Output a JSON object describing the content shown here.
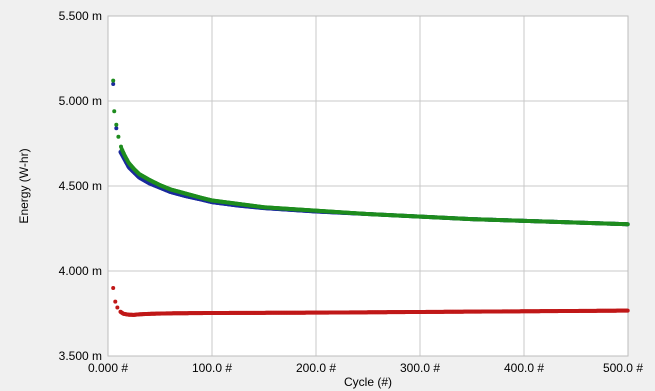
{
  "chart_data": {
    "type": "scatter",
    "title": "",
    "xlabel": "Cycle (#)",
    "ylabel": "Energy (W-hr)",
    "xlim": [
      0,
      500
    ],
    "ylim": [
      3.5,
      5.5
    ],
    "grid": true,
    "x_ticks": [
      "0.000 #",
      "100.0 #",
      "200.0 #",
      "300.0 #",
      "400.0 #",
      "500.0 #"
    ],
    "y_ticks": [
      "3.500 m",
      "4.000 m",
      "4.500 m",
      "5.000 m",
      "5.500 m"
    ],
    "series": [
      {
        "color": "#1a2a9c",
        "points": [
          [
            5,
            5.1
          ],
          [
            8,
            4.84
          ],
          [
            12,
            4.7
          ],
          [
            20,
            4.61
          ],
          [
            30,
            4.55
          ],
          [
            40,
            4.515
          ],
          [
            50,
            4.49
          ],
          [
            60,
            4.465
          ],
          [
            75,
            4.44
          ],
          [
            90,
            4.42
          ],
          [
            100,
            4.405
          ],
          [
            125,
            4.385
          ],
          [
            150,
            4.37
          ],
          [
            200,
            4.35
          ],
          [
            250,
            4.335
          ],
          [
            300,
            4.32
          ],
          [
            350,
            4.305
          ],
          [
            400,
            4.295
          ],
          [
            450,
            4.285
          ],
          [
            500,
            4.275
          ]
        ]
      },
      {
        "color": "#1e8c1e",
        "points": [
          [
            5,
            5.12
          ],
          [
            6,
            4.94
          ],
          [
            8,
            4.86
          ],
          [
            10,
            4.79
          ],
          [
            13,
            4.72
          ],
          [
            16,
            4.68
          ],
          [
            20,
            4.635
          ],
          [
            25,
            4.6
          ],
          [
            30,
            4.57
          ],
          [
            40,
            4.535
          ],
          [
            50,
            4.505
          ],
          [
            60,
            4.48
          ],
          [
            75,
            4.455
          ],
          [
            90,
            4.43
          ],
          [
            100,
            4.415
          ],
          [
            125,
            4.395
          ],
          [
            150,
            4.375
          ],
          [
            200,
            4.355
          ],
          [
            250,
            4.335
          ],
          [
            300,
            4.32
          ],
          [
            350,
            4.305
          ],
          [
            400,
            4.295
          ],
          [
            450,
            4.285
          ],
          [
            500,
            4.275
          ]
        ]
      },
      {
        "color": "#c01818",
        "points": [
          [
            5,
            3.9
          ],
          [
            7,
            3.82
          ],
          [
            9,
            3.785
          ],
          [
            12,
            3.76
          ],
          [
            15,
            3.748
          ],
          [
            20,
            3.743
          ],
          [
            25,
            3.742
          ],
          [
            30,
            3.745
          ],
          [
            40,
            3.748
          ],
          [
            60,
            3.751
          ],
          [
            80,
            3.752
          ],
          [
            100,
            3.753
          ],
          [
            150,
            3.754
          ],
          [
            200,
            3.755
          ],
          [
            250,
            3.757
          ],
          [
            300,
            3.759
          ],
          [
            350,
            3.761
          ],
          [
            400,
            3.763
          ],
          [
            450,
            3.765
          ],
          [
            500,
            3.767
          ]
        ]
      }
    ]
  }
}
